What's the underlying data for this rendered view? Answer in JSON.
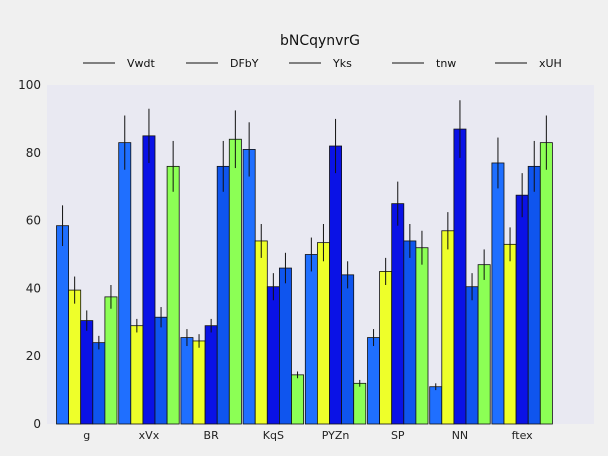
{
  "chart_data": {
    "type": "bar",
    "title": "bNCqynvrG",
    "xlabel": "",
    "ylabel": "",
    "ylim": [
      0,
      100
    ],
    "yticks": [
      0,
      20,
      40,
      60,
      80,
      100
    ],
    "grid": false,
    "legend_position": "top",
    "categories": [
      "g",
      "xVx",
      "BR",
      "KqS",
      "PYZn",
      "SP",
      "NN",
      "ftex"
    ],
    "series": [
      {
        "name": "Vwdt",
        "color": "#1f6fff",
        "values": [
          58.5,
          83,
          25.5,
          81,
          50,
          25.5,
          11,
          77
        ],
        "errors": [
          6,
          8,
          2.5,
          8,
          5,
          2.5,
          1,
          7.5
        ]
      },
      {
        "name": "DFbY",
        "color": "#eeff2a",
        "values": [
          39.5,
          29,
          24.5,
          54,
          53.5,
          45,
          57,
          53
        ],
        "errors": [
          4,
          2,
          2,
          5,
          5.5,
          4,
          5.5,
          5
        ]
      },
      {
        "name": "Yks",
        "color": "#0a12e6",
        "values": [
          30.5,
          85,
          29,
          40.5,
          82,
          65,
          87,
          67.5
        ],
        "errors": [
          3,
          8,
          2,
          4,
          8,
          6.5,
          8.5,
          6.5
        ]
      },
      {
        "name": "tnw",
        "color": "#0f55ee",
        "values": [
          24,
          31.5,
          76,
          46,
          44,
          54,
          40.5,
          76
        ],
        "errors": [
          2,
          3,
          7.5,
          4.5,
          4,
          5,
          4,
          7.5
        ]
      },
      {
        "name": "xUH",
        "color": "#8cff55",
        "values": [
          37.5,
          76,
          84,
          14.5,
          12,
          52,
          47,
          83
        ],
        "errors": [
          3.5,
          7.5,
          8.5,
          1,
          1,
          5,
          4.5,
          8
        ]
      }
    ]
  }
}
